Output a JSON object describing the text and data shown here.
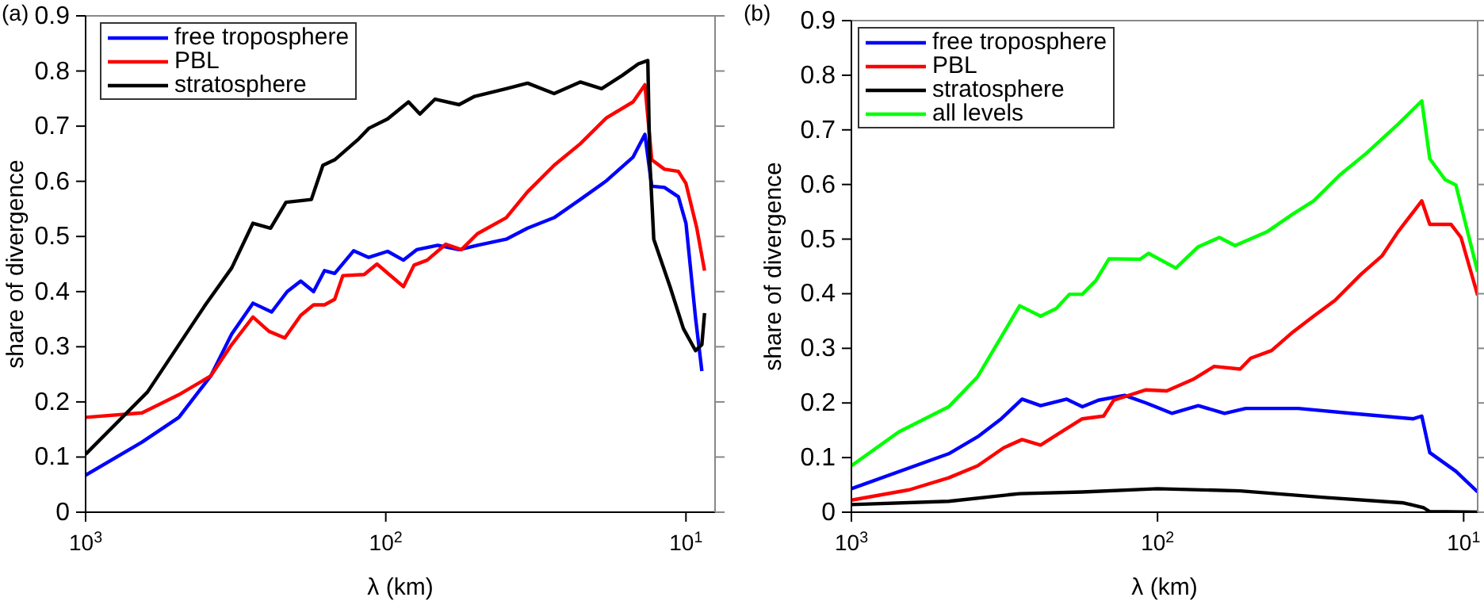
{
  "chart_data": [
    {
      "type": "line",
      "annotations": [
        "(a)"
      ],
      "xlabel": "λ (km)",
      "ylabel": "share of divergence",
      "log": "x",
      "xlim": [
        1000,
        8
      ],
      "xticks": [
        {
          "value": 1000,
          "label": "10$^{3}$"
        },
        {
          "value": 100,
          "label": "10$^{2}$"
        },
        {
          "value": 10,
          "label": "10$^{1}$"
        }
      ],
      "ylim": [
        0,
        0.9
      ],
      "yticks": [
        0,
        0.1,
        0.2,
        0.3,
        0.4,
        0.5,
        0.6,
        0.7,
        0.8,
        0.9
      ],
      "legend": "top left",
      "grid": false,
      "series": [
        {
          "name": "free troposphere",
          "color": "#0000ff",
          "x": [
            1000,
            649,
            489,
            383,
            326,
            277,
            240,
            213,
            192,
            174,
            160,
            148,
            128,
            114,
            98.6,
            87.3,
            78.9,
            67.1,
            57,
            49.5,
            39.7,
            33.7,
            27.5,
            22.5,
            18.4,
            15,
            13.7,
            13,
            11.8,
            10.6,
            10,
            9.29,
            8.85
          ],
          "values": [
            0.067,
            0.127,
            0.172,
            0.247,
            0.323,
            0.379,
            0.363,
            0.4,
            0.419,
            0.4,
            0.438,
            0.433,
            0.474,
            0.462,
            0.473,
            0.457,
            0.476,
            0.484,
            0.476,
            0.484,
            0.495,
            0.515,
            0.534,
            0.567,
            0.601,
            0.644,
            0.685,
            0.591,
            0.589,
            0.572,
            0.524,
            0.352,
            0.256
          ]
        },
        {
          "name": "PBL",
          "color": "#ff0000",
          "x": [
            1000,
            649,
            489,
            383,
            326,
            277,
            245,
            217,
            192,
            174,
            160,
            148,
            139,
            118,
            107,
            87.3,
            80.5,
            72.8,
            63.1,
            56,
            49.5,
            39.7,
            33.7,
            27.5,
            22.5,
            18.4,
            15,
            13.7,
            13,
            11.8,
            10.6,
            10,
            9.2,
            8.67
          ],
          "values": [
            0.172,
            0.18,
            0.213,
            0.247,
            0.304,
            0.354,
            0.328,
            0.316,
            0.357,
            0.376,
            0.376,
            0.386,
            0.429,
            0.431,
            0.45,
            0.409,
            0.448,
            0.457,
            0.486,
            0.476,
            0.505,
            0.534,
            0.581,
            0.629,
            0.668,
            0.715,
            0.744,
            0.775,
            0.639,
            0.622,
            0.618,
            0.596,
            0.515,
            0.438
          ]
        },
        {
          "name": "stratosphere",
          "color": "#000000",
          "x": [
            1000,
            622,
            399,
            326,
            277,
            242,
            215,
            177,
            162,
            148,
            123,
            114,
            98.6,
            84,
            77,
            68.5,
            57,
            50.6,
            39.7,
            33.7,
            27.5,
            22.5,
            19.1,
            16.3,
            14.4,
            13.4,
            13.2,
            12.8,
            11.3,
            10.2,
            9.29,
            8.85,
            8.67
          ],
          "values": [
            0.105,
            0.218,
            0.376,
            0.443,
            0.524,
            0.515,
            0.562,
            0.567,
            0.629,
            0.639,
            0.677,
            0.696,
            0.713,
            0.744,
            0.722,
            0.749,
            0.739,
            0.754,
            0.768,
            0.778,
            0.759,
            0.78,
            0.768,
            0.792,
            0.813,
            0.819,
            0.639,
            0.495,
            0.409,
            0.333,
            0.293,
            0.304,
            0.361
          ]
        }
      ]
    },
    {
      "type": "line",
      "annotations": [
        "(b)"
      ],
      "xlabel": "λ (km)",
      "ylabel": "share of divergence",
      "log": "x",
      "xlim": [
        1000,
        9
      ],
      "xticks": [
        {
          "value": 1000,
          "label": "10$^{3}$"
        },
        {
          "value": 100,
          "label": "10$^{2}$"
        },
        {
          "value": 10,
          "label": "10$^{1}$"
        }
      ],
      "ylim": [
        0,
        0.9
      ],
      "yticks": [
        0,
        0.1,
        0.2,
        0.3,
        0.4,
        0.5,
        0.6,
        0.7,
        0.8,
        0.9
      ],
      "legend": "top left",
      "grid": false,
      "series": [
        {
          "name": "free troposphere",
          "color": "#0000ff",
          "x": [
            1000,
            481,
            387,
            324,
            277,
            241,
            198,
            176,
            156,
            128,
            109,
            89.8,
            73.6,
            60.4,
            51.5,
            34.7,
            23.4,
            14.6,
            13.7,
            12.9,
            10.6,
            9
          ],
          "values": [
            0.043,
            0.107,
            0.138,
            0.171,
            0.207,
            0.195,
            0.207,
            0.193,
            0.205,
            0.214,
            0.2,
            0.181,
            0.195,
            0.181,
            0.19,
            0.19,
            0.181,
            0.171,
            0.176,
            0.109,
            0.075,
            0.037
          ]
        },
        {
          "name": "PBL",
          "color": "#ff0000",
          "x": [
            1000,
            647,
            481,
            387,
            318,
            277,
            241,
            206,
            176,
            150,
            139,
            109,
            93.3,
            76.6,
            65.3,
            53.7,
            49.6,
            42.4,
            36.1,
            30.9,
            26.3,
            21.6,
            18.5,
            16.4,
            13.7,
            12.9,
            11,
            10.2,
            9
          ],
          "values": [
            0.022,
            0.041,
            0.063,
            0.085,
            0.118,
            0.133,
            0.123,
            0.147,
            0.171,
            0.176,
            0.205,
            0.224,
            0.222,
            0.243,
            0.267,
            0.262,
            0.282,
            0.296,
            0.33,
            0.359,
            0.388,
            0.436,
            0.469,
            0.513,
            0.57,
            0.527,
            0.527,
            0.503,
            0.397
          ]
        },
        {
          "name": "stratosphere",
          "color": "#000000",
          "x": [
            1000,
            481,
            282,
            176,
            100,
            53.7,
            28.5,
            15.7,
            13.5,
            12.9,
            9
          ],
          "values": [
            0.014,
            0.02,
            0.034,
            0.037,
            0.043,
            0.039,
            0.027,
            0.017,
            0.008,
            0.001,
            0
          ]
        },
        {
          "name": "all levels",
          "color": "#00ff00",
          "x": [
            1000,
            700,
            481,
            387,
            282,
            241,
            214,
            194,
            176,
            159,
            144,
            114,
            107,
            87.1,
            73.6,
            62.8,
            55.8,
            44,
            36.1,
            30.9,
            25.3,
            20.8,
            16.4,
            13.7,
            12.9,
            11.5,
            10.6,
            9
          ],
          "values": [
            0.085,
            0.147,
            0.193,
            0.248,
            0.378,
            0.359,
            0.373,
            0.399,
            0.399,
            0.424,
            0.464,
            0.463,
            0.474,
            0.447,
            0.486,
            0.503,
            0.488,
            0.513,
            0.546,
            0.57,
            0.618,
            0.657,
            0.71,
            0.753,
            0.647,
            0.609,
            0.599,
            0.44
          ]
        }
      ]
    }
  ]
}
